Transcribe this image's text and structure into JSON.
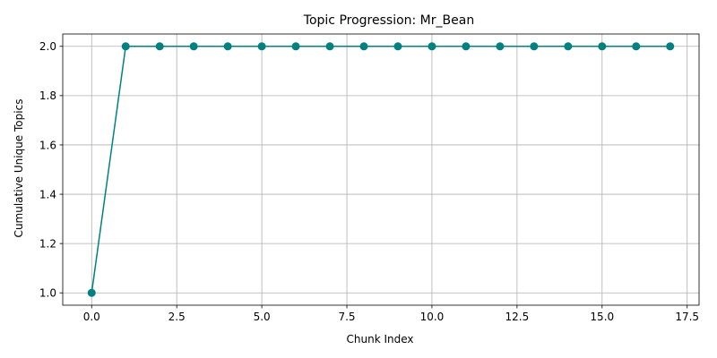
{
  "chart_data": {
    "type": "line",
    "title": "Topic Progression: Mr_Bean",
    "xlabel": "Chunk Index",
    "ylabel": "Cumulative Unique Topics",
    "x": [
      0,
      1,
      2,
      3,
      4,
      5,
      6,
      7,
      8,
      9,
      10,
      11,
      12,
      13,
      14,
      15,
      16,
      17
    ],
    "series": [
      {
        "values": [
          1,
          2,
          2,
          2,
          2,
          2,
          2,
          2,
          2,
          2,
          2,
          2,
          2,
          2,
          2,
          2,
          2,
          2
        ],
        "color": "#008080",
        "marker": "circle"
      }
    ],
    "xlim": [
      -0.85,
      17.85
    ],
    "ylim": [
      0.95,
      2.05
    ],
    "xticks": [
      0.0,
      2.5,
      5.0,
      7.5,
      10.0,
      12.5,
      15.0,
      17.5
    ],
    "xtick_labels": [
      "0.0",
      "2.5",
      "5.0",
      "7.5",
      "10.0",
      "12.5",
      "15.0",
      "17.5"
    ],
    "yticks": [
      1.0,
      1.2,
      1.4,
      1.6,
      1.8,
      2.0
    ],
    "ytick_labels": [
      "1.0",
      "1.2",
      "1.4",
      "1.6",
      "1.8",
      "2.0"
    ],
    "grid": true,
    "legend": false
  }
}
